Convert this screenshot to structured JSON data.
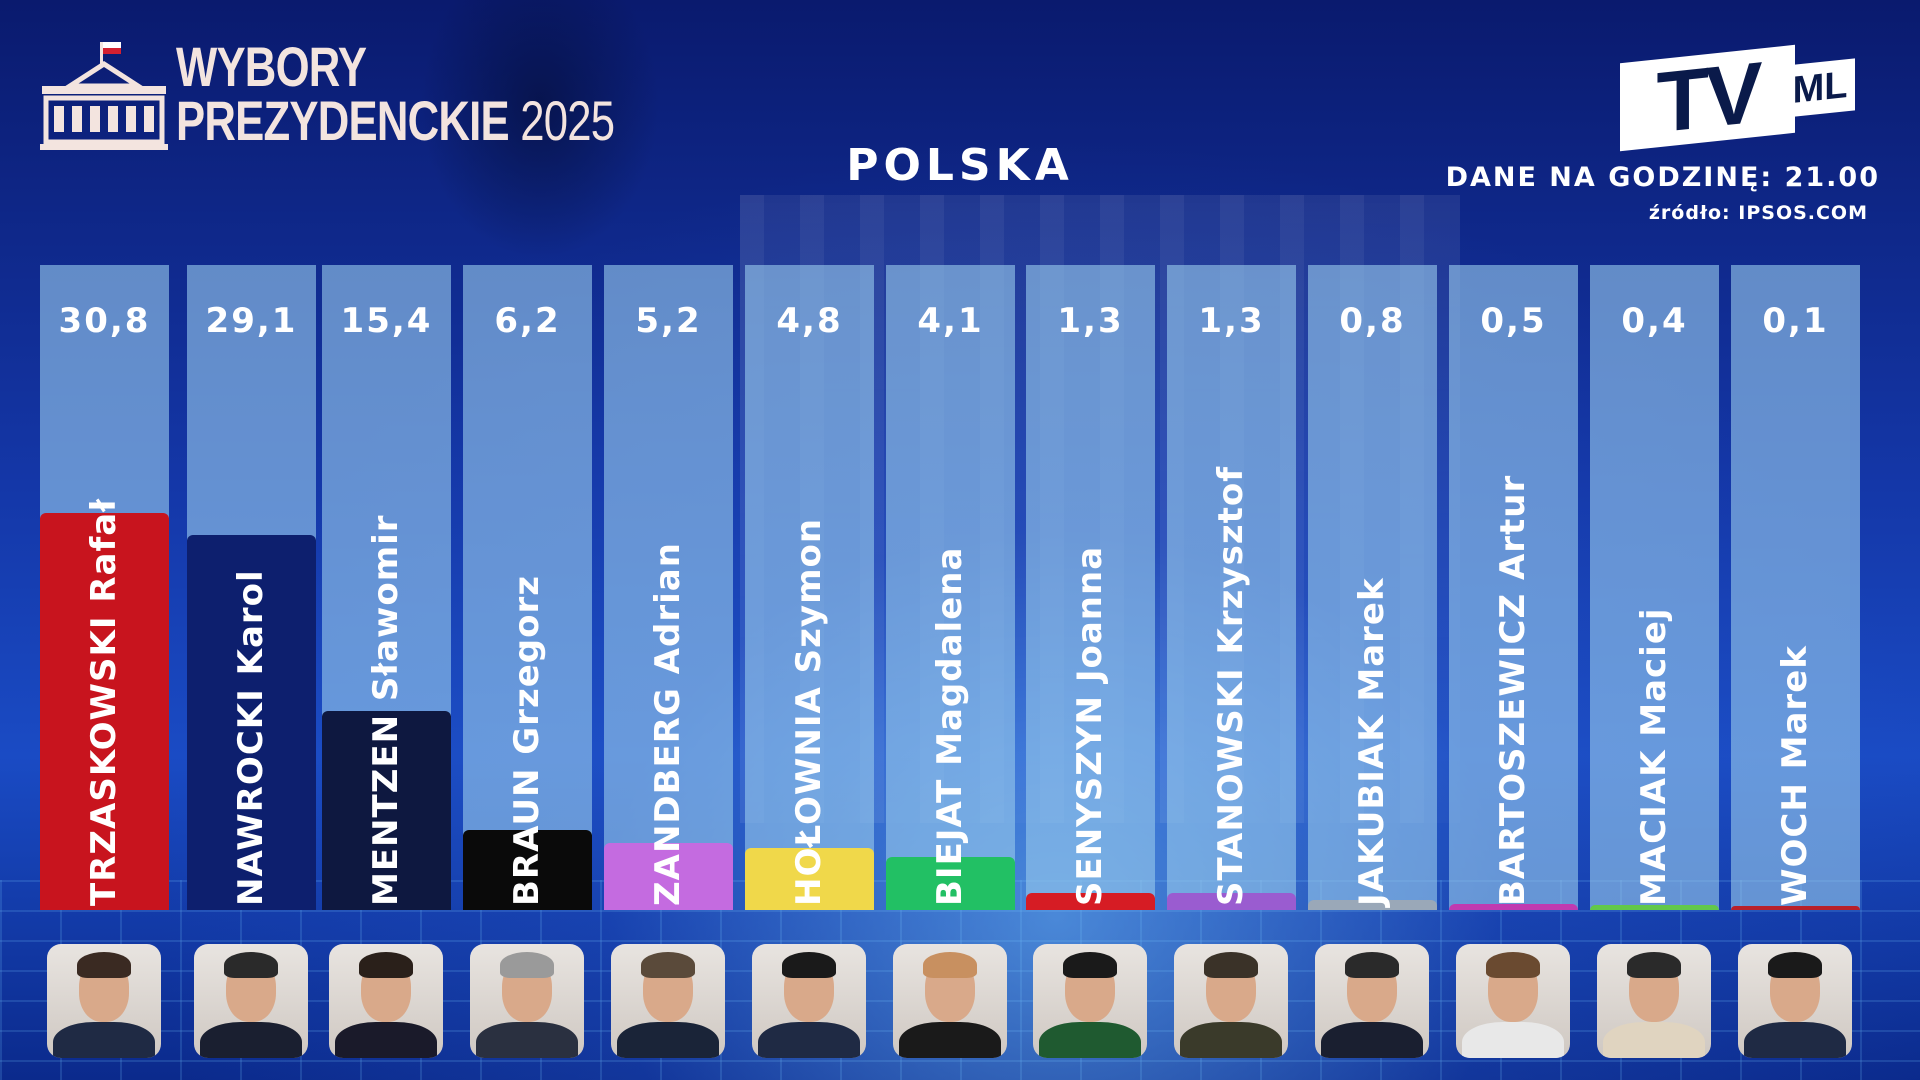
{
  "header": {
    "logo_line1": "WYBORY",
    "logo_line2": "PREZYDENCKIE",
    "logo_year": "2025",
    "region": "POLSKA",
    "tv_logo_main": "TV",
    "tv_logo_sub": "ML",
    "data_time": "DANE NA GODZINĘ: 21.00",
    "source": "źródło: IPSOS.COM"
  },
  "chart_data": {
    "type": "bar",
    "title": "POLSKA",
    "ylim": [
      0,
      50
    ],
    "categories": [
      "TRZASKOWSKI Rafał",
      "NAWROCKI Karol",
      "MENTZEN Sławomir",
      "BRAUN Grzegorz",
      "ZANDBERG Adrian",
      "HOŁOWNIA Szymon",
      "BIEJAT Magdalena",
      "SENYSZYN Joanna",
      "STANOWSKI Krzysztof",
      "JAKUBIAK Marek",
      "BARTOSZEWICZ Artur",
      "MACIAK Maciej",
      "WOCH Marek"
    ],
    "values": [
      30.8,
      29.1,
      15.4,
      6.2,
      5.2,
      4.8,
      4.1,
      1.3,
      1.3,
      0.8,
      0.5,
      0.4,
      0.1
    ],
    "value_labels": [
      "30,8",
      "29,1",
      "15,4",
      "6,2",
      "5,2",
      "4,8",
      "4,1",
      "1,3",
      "1,3",
      "0,8",
      "0,5",
      "0,4",
      "0,1"
    ],
    "colors": [
      "#c8141e",
      "#0d1f6e",
      "#0e1840",
      "#0a0a0a",
      "#c46be0",
      "#f0d84a",
      "#22c064",
      "#d61c24",
      "#9a5cd0",
      "#9aa8b8",
      "#c03ab0",
      "#62c84a",
      "#b8202a"
    ],
    "grid": false,
    "legend": "none"
  }
}
